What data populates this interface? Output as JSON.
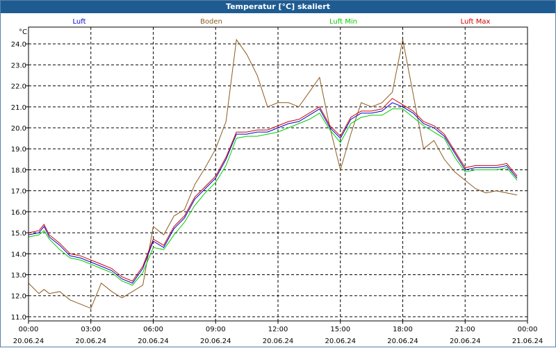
{
  "window": {
    "title": "Temperatur [°C] skaliert"
  },
  "chart_data": {
    "type": "line",
    "title": "Temperatur [°C] skaliert",
    "ylabel": "°C",
    "ylim": [
      10.8,
      24.8
    ],
    "xlim_hours": [
      0,
      24
    ],
    "grid": true,
    "legend": "top",
    "yticks": [
      "11.0",
      "12.0",
      "13.0",
      "14.0",
      "15.0",
      "16.0",
      "17.0",
      "18.0",
      "19.0",
      "20.0",
      "21.0",
      "22.0",
      "23.0",
      "24.0"
    ],
    "xticks": [
      {
        "time": "00:00",
        "date": "20.06.24"
      },
      {
        "time": "03:00",
        "date": "20.06.24"
      },
      {
        "time": "06:00",
        "date": "20.06.24"
      },
      {
        "time": "09:00",
        "date": "20.06.24"
      },
      {
        "time": "12:00",
        "date": "20.06.24"
      },
      {
        "time": "15:00",
        "date": "20.06.24"
      },
      {
        "time": "18:00",
        "date": "20.06.24"
      },
      {
        "time": "21:00",
        "date": "20.06.24"
      },
      {
        "time": "00:00",
        "date": "21.06.24"
      }
    ],
    "x": [
      0.0,
      0.5,
      0.75,
      1.0,
      1.5,
      2.0,
      2.5,
      3.0,
      3.5,
      4.0,
      4.5,
      5.0,
      5.5,
      6.0,
      6.5,
      7.0,
      7.5,
      8.0,
      8.5,
      9.0,
      9.5,
      10.0,
      10.5,
      11.0,
      11.5,
      12.0,
      12.5,
      13.0,
      13.5,
      14.0,
      14.5,
      15.0,
      15.5,
      16.0,
      16.5,
      17.0,
      17.5,
      18.0,
      18.5,
      19.0,
      19.5,
      20.0,
      20.5,
      21.0,
      21.5,
      22.0,
      22.5,
      23.0,
      23.5
    ],
    "series": [
      {
        "name": "Luft",
        "color": "#0000cc",
        "values": [
          14.9,
          15.0,
          15.3,
          14.8,
          14.4,
          13.9,
          13.8,
          13.6,
          13.4,
          13.2,
          12.8,
          12.6,
          13.3,
          14.6,
          14.3,
          15.2,
          15.7,
          16.6,
          17.1,
          17.6,
          18.5,
          19.7,
          19.7,
          19.8,
          19.8,
          20.0,
          20.2,
          20.3,
          20.6,
          20.9,
          20.0,
          19.5,
          20.4,
          20.7,
          20.7,
          20.8,
          21.2,
          21.0,
          20.7,
          20.2,
          20.0,
          19.6,
          18.8,
          18.0,
          18.1,
          18.1,
          18.1,
          18.2,
          17.6
        ]
      },
      {
        "name": "Boden",
        "color": "#8b5a1e",
        "values": [
          12.6,
          12.1,
          12.3,
          12.1,
          12.2,
          11.8,
          11.6,
          11.4,
          12.6,
          12.2,
          11.9,
          12.2,
          12.5,
          15.3,
          14.9,
          15.8,
          16.1,
          17.3,
          18.1,
          19.0,
          20.3,
          24.2,
          23.5,
          22.5,
          21.0,
          21.2,
          21.2,
          21.0,
          21.7,
          22.4,
          20.0,
          18.0,
          19.7,
          21.2,
          21.0,
          21.2,
          21.7,
          24.2,
          21.6,
          19.0,
          19.4,
          18.5,
          17.9,
          17.5,
          17.1,
          16.9,
          17.0,
          16.9,
          16.8
        ]
      },
      {
        "name": "Luft Min",
        "color": "#00cc00",
        "values": [
          14.8,
          14.9,
          15.1,
          14.7,
          14.2,
          13.8,
          13.7,
          13.5,
          13.3,
          13.1,
          12.7,
          12.5,
          13.1,
          14.3,
          14.2,
          14.9,
          15.5,
          16.3,
          16.9,
          17.4,
          18.2,
          19.5,
          19.6,
          19.6,
          19.7,
          19.8,
          20.0,
          20.2,
          20.4,
          20.7,
          19.9,
          19.3,
          20.2,
          20.5,
          20.6,
          20.6,
          20.9,
          20.9,
          20.5,
          20.1,
          19.8,
          19.5,
          18.6,
          17.9,
          18.0,
          18.0,
          18.0,
          18.1,
          17.5
        ]
      },
      {
        "name": "Luft Max",
        "color": "#cc0000",
        "values": [
          15.0,
          15.1,
          15.4,
          14.9,
          14.5,
          14.0,
          13.9,
          13.7,
          13.5,
          13.3,
          12.9,
          12.7,
          13.4,
          14.7,
          14.4,
          15.3,
          15.8,
          16.7,
          17.2,
          17.7,
          18.6,
          19.8,
          19.8,
          19.9,
          19.9,
          20.1,
          20.3,
          20.4,
          20.7,
          21.0,
          20.1,
          19.6,
          20.5,
          20.8,
          20.8,
          20.9,
          21.4,
          21.1,
          20.8,
          20.3,
          20.1,
          19.7,
          18.9,
          18.1,
          18.2,
          18.2,
          18.2,
          18.3,
          17.7
        ]
      }
    ]
  }
}
